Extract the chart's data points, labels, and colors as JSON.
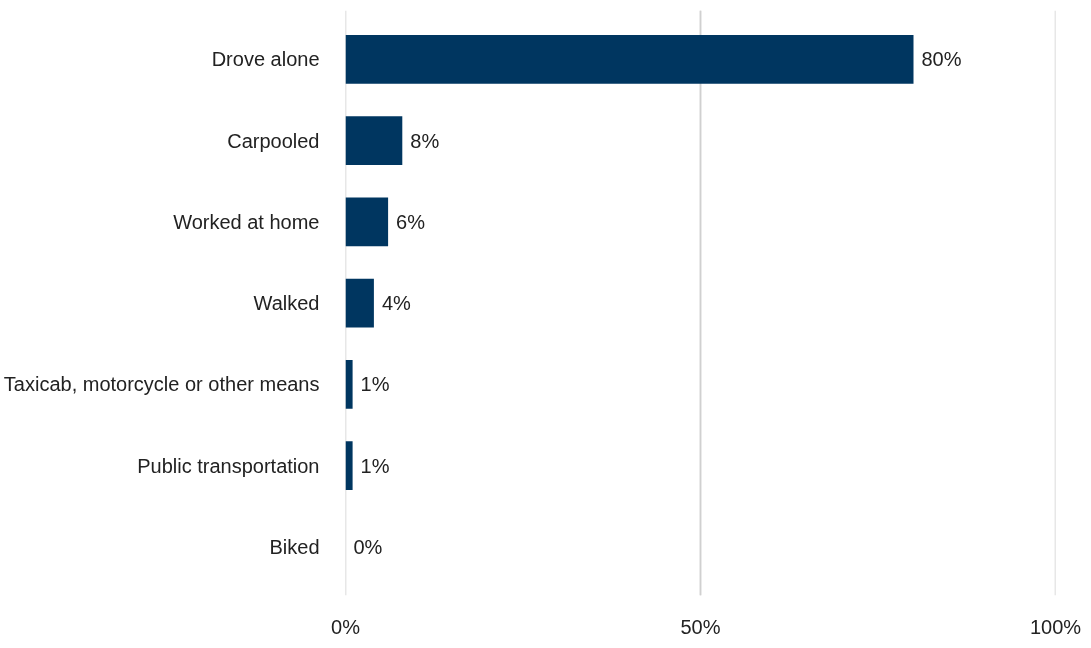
{
  "chart_data": {
    "type": "bar",
    "orientation": "horizontal",
    "categories": [
      "Drove alone",
      "Carpooled",
      "Worked at home",
      "Walked",
      "Taxicab, motorcycle or other means",
      "Public transportation",
      "Biked"
    ],
    "values": [
      80,
      8,
      6,
      4,
      1,
      1,
      0
    ],
    "value_labels": [
      "80%",
      "8%",
      "6%",
      "4%",
      "1%",
      "1%",
      "0%"
    ],
    "color": "#003660",
    "xlim": [
      0,
      100
    ],
    "xticks": [
      {
        "value": 0,
        "label": "0%"
      },
      {
        "value": 50,
        "label": "50%"
      },
      {
        "value": 100,
        "label": "100%"
      }
    ],
    "grid": "x"
  }
}
